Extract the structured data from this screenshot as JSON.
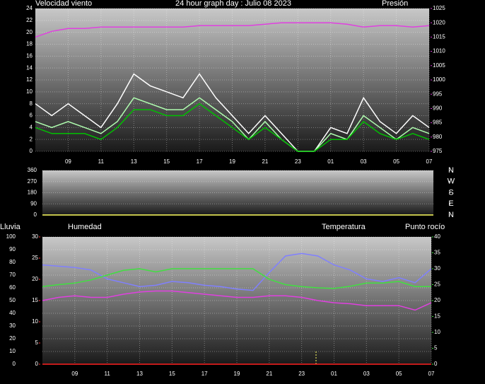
{
  "chart_data": [
    {
      "type": "line",
      "title": "24 hour graph day : Julio 08 2023",
      "ylabel": "Velocidad viento",
      "y2label": "Presión",
      "x": [
        0,
        1,
        2,
        3,
        4,
        5,
        6,
        7,
        8,
        9,
        10,
        11,
        12,
        13,
        14,
        15,
        16,
        17,
        18,
        19,
        20,
        21,
        22,
        23,
        24
      ],
      "xlim": [
        0,
        24
      ],
      "xticks": [
        {
          "value": 2,
          "label": "09"
        },
        {
          "value": 4,
          "label": "11"
        },
        {
          "value": 6,
          "label": "13"
        },
        {
          "value": 8,
          "label": "15"
        },
        {
          "value": 10,
          "label": "17"
        },
        {
          "value": 12,
          "label": "19"
        },
        {
          "value": 14,
          "label": "21"
        },
        {
          "value": 16,
          "label": "23"
        },
        {
          "value": 18,
          "label": "01"
        },
        {
          "value": 20,
          "label": "03"
        },
        {
          "value": 22,
          "label": "05"
        },
        {
          "value": 24,
          "label": "07"
        }
      ],
      "ylim": [
        0,
        24
      ],
      "yticks": [
        0,
        2,
        4,
        6,
        8,
        10,
        12,
        14,
        16,
        18,
        20,
        22,
        24
      ],
      "y2lim": [
        975,
        1025
      ],
      "y2ticks": [
        975,
        980,
        985,
        990,
        995,
        1000,
        1005,
        1010,
        1015,
        1020,
        1025
      ],
      "axis_colors": {
        "y": "#ffffff",
        "y2": "#e040e0"
      },
      "grid": true,
      "series": [
        {
          "color": "#ffffff",
          "values": [
            8,
            6,
            8,
            6,
            4,
            8,
            13,
            11,
            10,
            9,
            13,
            9,
            6,
            3,
            6,
            3,
            0,
            0,
            4,
            3,
            9,
            5,
            3,
            6,
            4
          ]
        },
        {
          "color": "#b0ffb0",
          "values": [
            5,
            4,
            5,
            4,
            3,
            5,
            9,
            8,
            7,
            7,
            9,
            7,
            5,
            2,
            5,
            2,
            0,
            0,
            3,
            2,
            6,
            4,
            2,
            4,
            3
          ]
        },
        {
          "color": "#00c000",
          "values": [
            4,
            3,
            3,
            3,
            2,
            4,
            7,
            7,
            6,
            6,
            8,
            6,
            4,
            2,
            4,
            2,
            0,
            0,
            2,
            2,
            5,
            3,
            2,
            3,
            2
          ]
        },
        {
          "color": "#e040e0",
          "axis": "y2",
          "values": [
            1015,
            1017,
            1018,
            1018,
            1018.5,
            1018.5,
            1018.5,
            1018.5,
            1018.5,
            1018.5,
            1019,
            1019,
            1019,
            1019,
            1019.5,
            1020,
            1020,
            1020,
            1020,
            1019.5,
            1018.5,
            1019,
            1019,
            1018.5,
            1019
          ]
        }
      ]
    },
    {
      "type": "line",
      "x": [
        0,
        1,
        2,
        3,
        4,
        5,
        6,
        7,
        8,
        9,
        10,
        11,
        12,
        13,
        14,
        15,
        16,
        17,
        18,
        19,
        20,
        21,
        22,
        23,
        24
      ],
      "xlim": [
        0,
        24
      ],
      "ylim": [
        0,
        360
      ],
      "yticks": [
        0,
        90,
        180,
        270,
        360
      ],
      "y2lim": [
        0,
        360
      ],
      "y2ticks": [
        {
          "value": 360,
          "label": "N"
        },
        {
          "value": 270,
          "label": "W"
        },
        {
          "value": 180,
          "label": "S"
        },
        {
          "value": 90,
          "label": "E"
        },
        {
          "value": 0,
          "label": "N"
        }
      ],
      "axis_colors": {
        "y": "#ffffff",
        "y2": "#ffffff"
      },
      "grid": true,
      "series": [
        {
          "color": "#ffff60",
          "values": [
            0,
            0,
            0,
            0,
            0,
            0,
            0,
            0,
            0,
            0,
            0,
            0,
            0,
            0,
            0,
            0,
            0,
            0,
            0,
            0,
            0,
            0,
            0,
            0,
            0
          ]
        }
      ]
    },
    {
      "type": "line",
      "x": [
        0,
        1,
        2,
        3,
        4,
        5,
        6,
        7,
        8,
        9,
        10,
        11,
        12,
        13,
        14,
        15,
        16,
        17,
        18,
        19,
        20,
        21,
        22,
        23,
        24
      ],
      "xlim": [
        0,
        24
      ],
      "xticks": [
        {
          "value": 2,
          "label": "09"
        },
        {
          "value": 4,
          "label": "11"
        },
        {
          "value": 6,
          "label": "13"
        },
        {
          "value": 8,
          "label": "15"
        },
        {
          "value": 10,
          "label": "17"
        },
        {
          "value": 12,
          "label": "19"
        },
        {
          "value": 14,
          "label": "21"
        },
        {
          "value": 16,
          "label": "23"
        },
        {
          "value": 18,
          "label": "01"
        },
        {
          "value": 20,
          "label": "03"
        },
        {
          "value": 22,
          "label": "05"
        },
        {
          "value": 24,
          "label": "07"
        }
      ],
      "ylim": [
        0,
        100
      ],
      "yticks": [
        0,
        10,
        20,
        30,
        40,
        50,
        60,
        70,
        80,
        90,
        100
      ],
      "y3lim": [
        0,
        30
      ],
      "y3ticks": [
        0,
        5,
        10,
        15,
        20,
        25,
        30
      ],
      "y2lim": [
        0,
        40
      ],
      "y2ticks": [
        0,
        5,
        10,
        15,
        20,
        25,
        30,
        35,
        40
      ],
      "axis_colors": {
        "y": "#8080ff",
        "y2": "#40e040",
        "y3": "#ff3030"
      },
      "grid": true,
      "series": [
        {
          "name": "Lluvia",
          "color": "#ff2020",
          "axis": "y3",
          "values": [
            0,
            0,
            0,
            0,
            0,
            0,
            0,
            0,
            0,
            0,
            0,
            0,
            0,
            0,
            0,
            0,
            0,
            0,
            0,
            0,
            0,
            0,
            0,
            0,
            0
          ]
        },
        {
          "name": "Humedad",
          "color": "#8080ff",
          "values": [
            78,
            77,
            76,
            74,
            67,
            64,
            61,
            62,
            65,
            64,
            62,
            61,
            59,
            58,
            72,
            85,
            87,
            85,
            78,
            74,
            67,
            65,
            68,
            64,
            75
          ]
        },
        {
          "name": "Temperatura",
          "color": "#40e040",
          "axis": "y2",
          "values": [
            24.4,
            25,
            25.5,
            26.5,
            28,
            29.5,
            30,
            29,
            30,
            30,
            30,
            30,
            30,
            30,
            26.7,
            25,
            24.4,
            24,
            23.8,
            24.5,
            25.5,
            25.5,
            26,
            24.4,
            24.4
          ]
        },
        {
          "name": "Punto rocío",
          "color": "#e040e0",
          "axis": "y2",
          "values": [
            20,
            21,
            21.5,
            21,
            21,
            22,
            22.7,
            23,
            23,
            22.5,
            22,
            21.5,
            21,
            21,
            21.5,
            21.5,
            21,
            20,
            19.3,
            19,
            18.4,
            18.4,
            18.4,
            17,
            19.3
          ]
        }
      ]
    }
  ]
}
